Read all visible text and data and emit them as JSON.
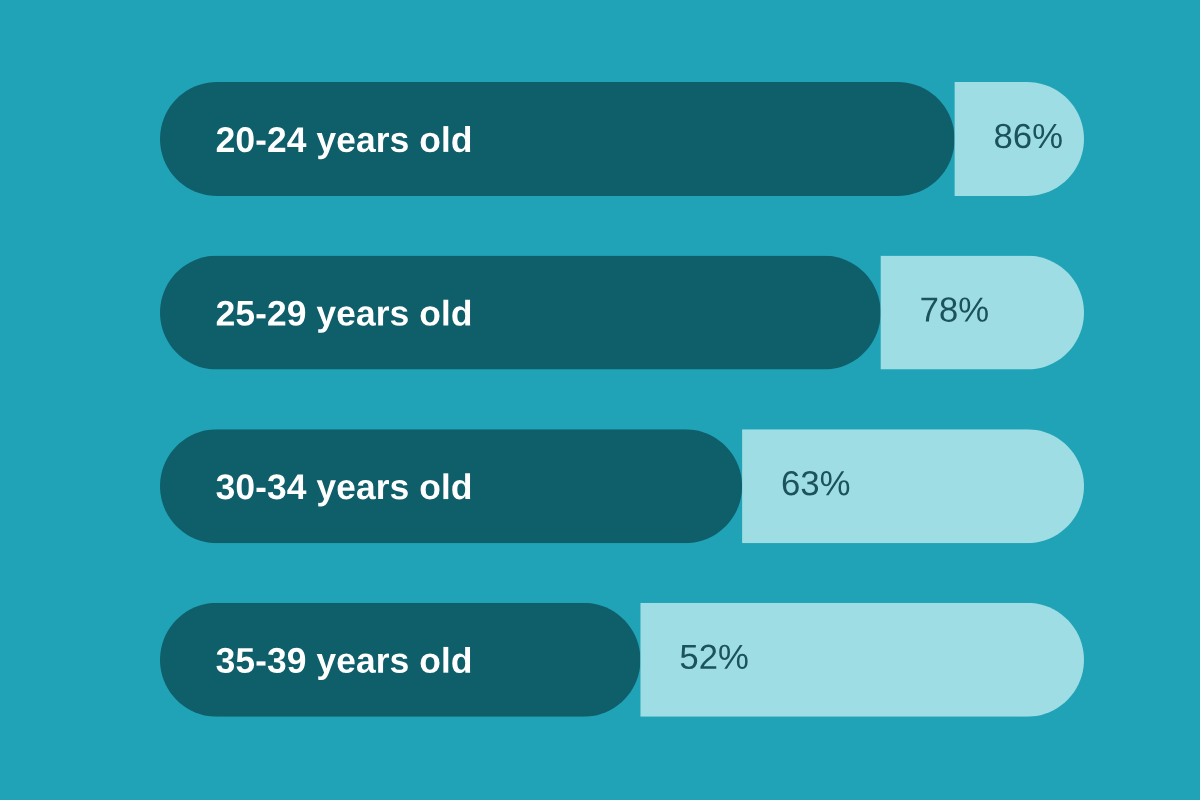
{
  "chart_data": {
    "type": "bar",
    "orientation": "horizontal",
    "stacked": true,
    "categories": [
      "20-24 years old",
      "25-29 years old",
      "30-34 years old",
      "35-39 years old"
    ],
    "series": [
      {
        "color": "#0f5f6b",
        "values": [
          86,
          78,
          63,
          52
        ],
        "value_labels": [
          "86%",
          "78%",
          "63%",
          "52%"
        ]
      },
      {
        "color": "#9edde3",
        "values": [
          14,
          22,
          37,
          48
        ]
      }
    ],
    "xlim": [
      0,
      100
    ],
    "tick_labels": "y"
  }
}
